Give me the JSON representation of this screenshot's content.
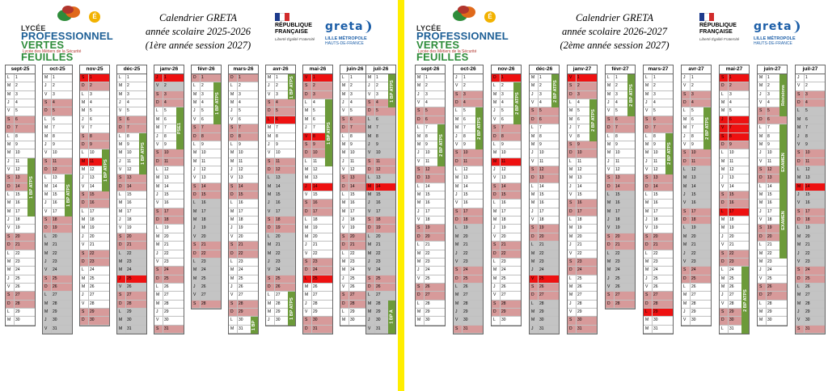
{
  "school": {
    "line1": "LYCÉE",
    "line2": "PROFESSIONNEL",
    "line3": "VERTES FEUILLES",
    "line4": "Lycée des Métiers de la Sécurité",
    "leaf_colors": [
      "#2e8c3a",
      "#e0691a",
      "#b1352d",
      "#f2b200"
    ]
  },
  "gov": {
    "line1": "RÉPUBLIQUE",
    "line2": "FRANÇAISE",
    "motto": "Liberté Égalité Fraternité",
    "flag": [
      "#1d3a8c",
      "#ffffff",
      "#d12b2b"
    ]
  },
  "greta": {
    "name": "greta",
    "line1": "LILLE MÉTROPOLE",
    "line2": "HAUTS-DE-FRANCE"
  },
  "colors": {
    "weekend": "#d79a9a",
    "holiday": "#c4c4c4",
    "ferie": "#ee1111",
    "atps": "#6c9a3a",
    "divider": "#ffee00"
  },
  "calendars": [
    {
      "title": [
        "Calendrier GRETA",
        "année scolaire 2025-2026",
        "(1ère année session 2027)"
      ],
      "months": [
        {
          "label": "sept-25",
          "y": 2025,
          "m": 8,
          "holidays": [],
          "bands": [
            {
              "start": 11,
              "end": 17,
              "label": "1 BP ATPS"
            }
          ]
        },
        {
          "label": "oct-25",
          "y": 2025,
          "m": 9,
          "holidays": [
            18,
            19,
            20,
            21,
            22,
            23,
            24,
            25,
            26,
            27,
            28,
            29,
            30,
            31
          ],
          "bands": [
            {
              "start": 13,
              "end": 17,
              "label": "1 BP ATPS"
            }
          ]
        },
        {
          "label": "nov-25",
          "y": 2025,
          "m": 10,
          "holidays": [
            1,
            2
          ],
          "ferie": [
            1,
            11
          ],
          "bands": [
            {
              "start": 10,
              "end": 14,
              "label": "1 BP ATPS"
            }
          ]
        },
        {
          "label": "déc-25",
          "y": 2025,
          "m": 11,
          "holidays": [
            20,
            21,
            22,
            23,
            24,
            26,
            27,
            28,
            29,
            30,
            31
          ],
          "ferie": [
            25
          ],
          "bands": [
            {
              "start": 8,
              "end": 12,
              "label": "1 BP ATPS"
            }
          ]
        },
        {
          "label": "janv-26",
          "y": 2026,
          "m": 0,
          "holidays": [
            2,
            3,
            4
          ],
          "ferie": [
            1
          ],
          "bands": [
            {
              "start": 5,
              "end": 9,
              "label": "PSE1"
            }
          ]
        },
        {
          "label": "févr-26",
          "y": 2026,
          "m": 1,
          "holidays": [
            14,
            15,
            16,
            17,
            18,
            19,
            20,
            21,
            22,
            23,
            24,
            25,
            26,
            27,
            28
          ],
          "bands": [
            {
              "start": 2,
              "end": 6,
              "label": "1 BP ATPS"
            }
          ]
        },
        {
          "label": "mars-26",
          "y": 2026,
          "m": 2,
          "holidays": [
            1
          ],
          "bands": [
            {
              "start": 30,
              "end": 31,
              "label": "1 BP"
            }
          ]
        },
        {
          "label": "avr-26",
          "y": 2026,
          "m": 3,
          "holidays": [
            11,
            12,
            13,
            14,
            15,
            16,
            17,
            18,
            19,
            20,
            21,
            22,
            23,
            24,
            25,
            26
          ],
          "ferie": [
            6
          ],
          "bands": [
            {
              "start": 1,
              "end": 3,
              "label": "1 BP ATPS"
            },
            {
              "start": 27,
              "end": 30,
              "label": "1 BP ATPS"
            }
          ]
        },
        {
          "label": "mai-26",
          "y": 2026,
          "m": 4,
          "holidays": [],
          "ferie": [
            1,
            8,
            14,
            25
          ],
          "bands": [
            {
              "start": 4,
              "end": 11,
              "label": "1 BP ATPS"
            }
          ]
        },
        {
          "label": "juin-26",
          "y": 2026,
          "m": 5,
          "holidays": [],
          "bands": []
        },
        {
          "label": "juil-26",
          "y": 2026,
          "m": 6,
          "holidays": [
            5,
            6,
            7,
            8,
            9,
            10,
            11,
            12,
            13,
            15,
            16,
            17,
            18,
            19,
            20,
            21,
            22,
            23,
            24,
            25,
            26,
            27,
            28,
            29,
            30,
            31
          ],
          "ferie": [
            14
          ],
          "bands": [
            {
              "start": 1,
              "end": 4,
              "label": "1 BP ATPS"
            },
            {
              "start": 28,
              "end": 31,
              "label": "1 BP A"
            }
          ]
        }
      ]
    },
    {
      "title": [
        "Calendrier GRETA",
        "année scolaire 2026-2027",
        "(2ème année session 2027)"
      ],
      "months": [
        {
          "label": "sept-26",
          "y": 2026,
          "m": 8,
          "holidays": [],
          "bands": [
            {
              "start": 7,
              "end": 11,
              "label": "2 BP ATPS"
            }
          ]
        },
        {
          "label": "oct-26",
          "y": 2026,
          "m": 9,
          "holidays": [
            17,
            18,
            19,
            20,
            21,
            22,
            23,
            24,
            25,
            26,
            27,
            28,
            29,
            30,
            31
          ],
          "bands": [
            {
              "start": 5,
              "end": 9,
              "label": "2 BP ATPS"
            }
          ]
        },
        {
          "label": "nov-26",
          "y": 2026,
          "m": 10,
          "holidays": [
            1
          ],
          "ferie": [
            1,
            11
          ],
          "bands": [
            {
              "start": 2,
              "end": 6,
              "label": "2 BP ATPS"
            }
          ]
        },
        {
          "label": "déc-26",
          "y": 2026,
          "m": 11,
          "holidays": [
            19,
            20,
            21,
            22,
            23,
            24,
            26,
            27,
            28,
            29,
            30,
            31
          ],
          "ferie": [
            25
          ],
          "bands": [
            {
              "start": 1,
              "end": 4,
              "label": "2 BP ATPS"
            }
          ]
        },
        {
          "label": "janv-27",
          "y": 2027,
          "m": 0,
          "holidays": [
            2,
            3
          ],
          "ferie": [
            1
          ],
          "bands": [
            {
              "start": 4,
              "end": 8,
              "label": "2 BP ATPS"
            }
          ]
        },
        {
          "label": "févr-27",
          "y": 2027,
          "m": 1,
          "holidays": [
            13,
            14,
            15,
            16,
            17,
            18,
            19,
            20,
            21,
            22,
            23,
            24,
            25,
            26,
            27,
            28
          ],
          "bands": [
            {
              "start": 1,
              "end": 5,
              "label": "2 BP ATPS"
            }
          ]
        },
        {
          "label": "mars-27",
          "y": 2027,
          "m": 2,
          "holidays": [],
          "ferie": [
            29
          ],
          "bands": [
            {
              "start": 8,
              "end": 12,
              "label": "2 BP ATPS"
            }
          ]
        },
        {
          "label": "avr-27",
          "y": 2027,
          "m": 3,
          "holidays": [
            10,
            11,
            12,
            13,
            14,
            15,
            16,
            17,
            18,
            19,
            20,
            21,
            22,
            23,
            24,
            25
          ],
          "bands": [
            {
              "start": 5,
              "end": 9,
              "label": "2 BP ATPS"
            }
          ]
        },
        {
          "label": "mai-27",
          "y": 2027,
          "m": 4,
          "holidays": [],
          "ferie": [
            1,
            6,
            7,
            8,
            17
          ],
          "bands": [
            {
              "start": 24,
              "end": 31,
              "label": "2 BP ATPS"
            }
          ]
        },
        {
          "label": "juin-27",
          "y": 2027,
          "m": 5,
          "holidays": [],
          "bands": [
            {
              "start": 1,
              "end": 5,
              "label": "Révisions"
            },
            {
              "start": 7,
              "end": 15,
              "label": "EXAMEN"
            },
            {
              "start": 14,
              "end": 22,
              "label": "EXAMEN"
            }
          ]
        },
        {
          "label": "juil-27",
          "y": 2027,
          "m": 6,
          "holidays": [
            4,
            5,
            6,
            7,
            8,
            9,
            10,
            11,
            12,
            13,
            15,
            16,
            17,
            18,
            19,
            20,
            21,
            22,
            23,
            24,
            25,
            26,
            27,
            28,
            29,
            30,
            31
          ],
          "ferie": [
            14
          ],
          "bands": []
        }
      ]
    }
  ],
  "weekday_letters": [
    "D",
    "L",
    "M",
    "M",
    "J",
    "V",
    "S"
  ]
}
